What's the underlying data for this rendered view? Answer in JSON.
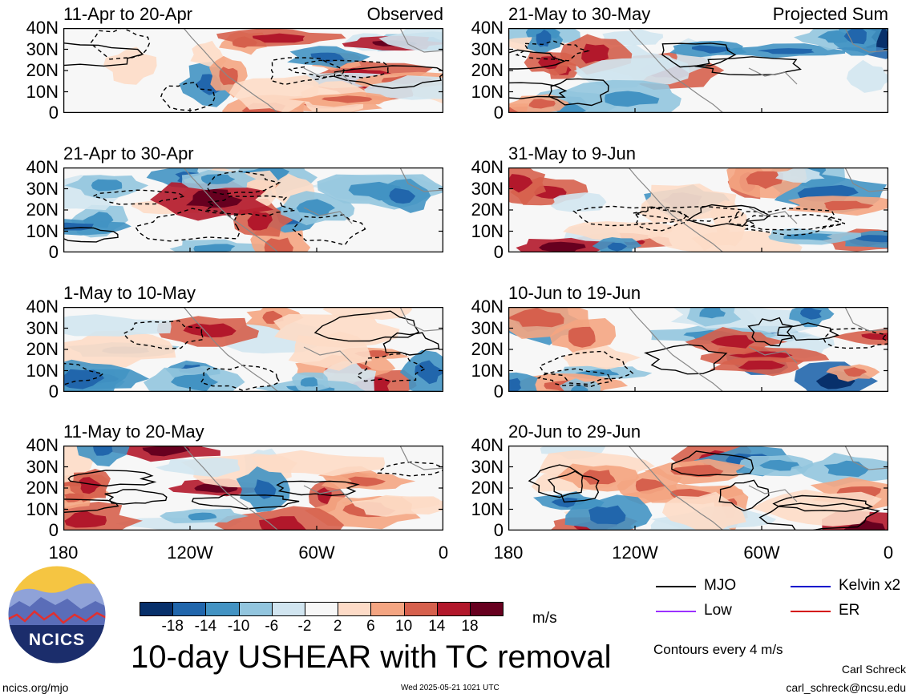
{
  "chart_data": {
    "type": "heatmap",
    "title": "10-day USHEAR with TC removal",
    "units": "m/s",
    "x_ticks": [
      "180",
      "120W",
      "60W",
      "0"
    ],
    "y_ticks": [
      "40N",
      "30N",
      "20N",
      "10N",
      "0"
    ],
    "colorbar": {
      "ticks": [
        "-18",
        "-14",
        "-10",
        "-6",
        "-2",
        "2",
        "6",
        "10",
        "14",
        "18"
      ],
      "colors": [
        "#08306b",
        "#2166ac",
        "#4393c3",
        "#92c5de",
        "#d1e5f0",
        "#f7f7f7",
        "#fddbc7",
        "#f4a582",
        "#d6604d",
        "#b2182b",
        "#67001f"
      ]
    },
    "contour_note": "Contours every 4 m/s",
    "legend": [
      {
        "label": "MJO",
        "color": "#000000"
      },
      {
        "label": "Kelvin x2",
        "color": "#0000cc"
      },
      {
        "label": "Low",
        "color": "#9b30ff"
      },
      {
        "label": "ER",
        "color": "#d40000"
      }
    ],
    "panels": [
      {
        "title": "11-Apr to 20-Apr",
        "tag": "Observed",
        "column": "left",
        "row": 0
      },
      {
        "title": "21-Apr to 30-Apr",
        "tag": "",
        "column": "left",
        "row": 1
      },
      {
        "title": "1-May to 10-May",
        "tag": "",
        "column": "left",
        "row": 2
      },
      {
        "title": "11-May to 20-May",
        "tag": "",
        "column": "left",
        "row": 3
      },
      {
        "title": "21-May to 30-May",
        "tag": "Projected Sum",
        "column": "right",
        "row": 0
      },
      {
        "title": "31-May to 9-Jun",
        "tag": "",
        "column": "right",
        "row": 1
      },
      {
        "title": "10-Jun to 19-Jun",
        "tag": "",
        "column": "right",
        "row": 2
      },
      {
        "title": "20-Jun to 29-Jun",
        "tag": "",
        "column": "right",
        "row": 3
      }
    ]
  },
  "logo": {
    "text": "NCICS"
  },
  "footer": {
    "left_url": "ncics.org/mjo",
    "timestamp": "Wed 2025-05-21 1021 UTC",
    "author": "Carl Schreck",
    "email": "carl_schreck@ncsu.edu"
  }
}
